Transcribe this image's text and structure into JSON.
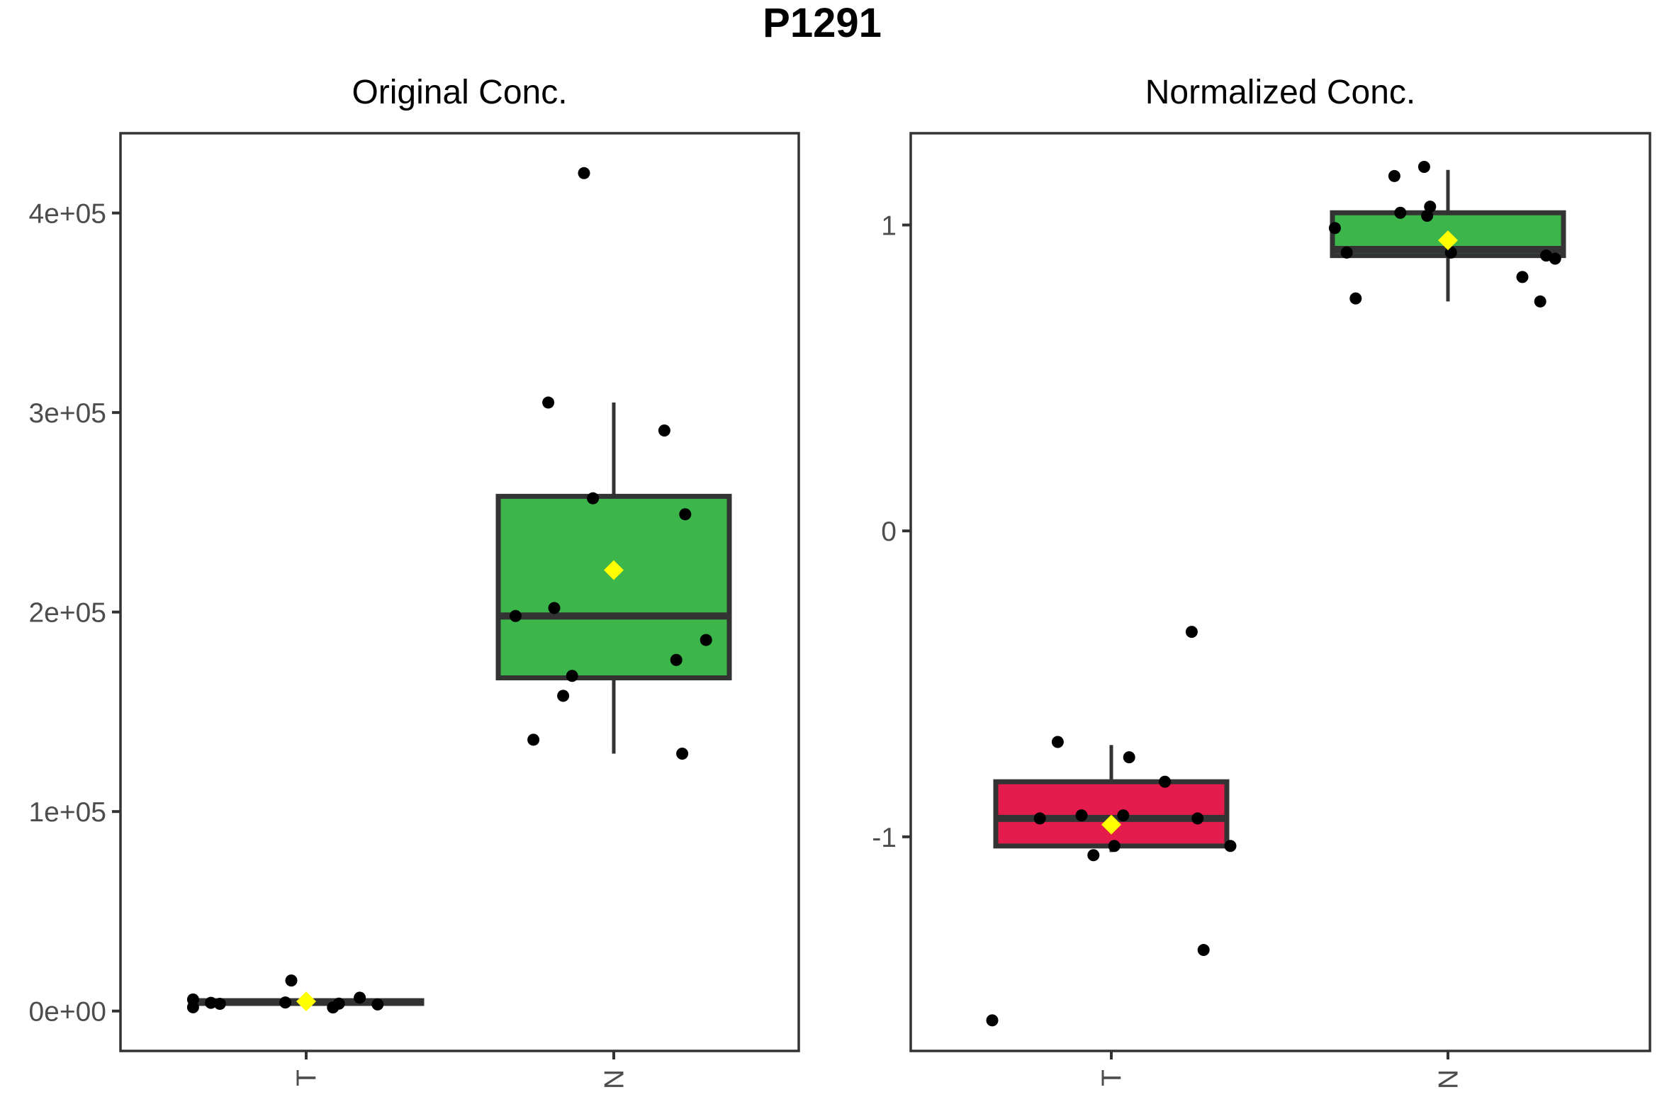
{
  "chart_data": {
    "type": "boxplot",
    "title": "P1291",
    "panels": [
      {
        "title": "Original Conc.",
        "ylim": [
          -20000,
          440000
        ],
        "yticks": [
          0,
          100000,
          200000,
          300000,
          400000
        ],
        "ytick_labels": [
          "0e+00",
          "1e+05",
          "2e+05",
          "3e+05",
          "4e+05"
        ],
        "categories": [
          "T",
          "N"
        ],
        "groups": [
          {
            "label": "T",
            "color": "",
            "stats": {
              "lower_whisker": 3000,
              "q1": 3800,
              "median": 4500,
              "q3": 5200,
              "upper_whisker": 6500,
              "mean": 4800
            },
            "points": [
              {
                "jx": -0.38,
                "y": 1900
              },
              {
                "jx": -0.38,
                "y": 5800
              },
              {
                "jx": -0.32,
                "y": 4100
              },
              {
                "jx": -0.29,
                "y": 3600
              },
              {
                "jx": -0.07,
                "y": 4300
              },
              {
                "jx": -0.05,
                "y": 15300
              },
              {
                "jx": 0.09,
                "y": 1800
              },
              {
                "jx": 0.11,
                "y": 3700
              },
              {
                "jx": 0.18,
                "y": 6700
              },
              {
                "jx": 0.24,
                "y": 3300
              }
            ]
          },
          {
            "label": "N",
            "color": "#3cb54a",
            "stats": {
              "lower_whisker": 129000,
              "q1": 167000,
              "median": 198000,
              "q3": 258000,
              "upper_whisker": 305000,
              "mean": 221000
            },
            "points": [
              {
                "jx": -0.33,
                "y": 198000
              },
              {
                "jx": -0.27,
                "y": 136000
              },
              {
                "jx": -0.22,
                "y": 305000
              },
              {
                "jx": -0.2,
                "y": 202000
              },
              {
                "jx": -0.17,
                "y": 158000
              },
              {
                "jx": -0.14,
                "y": 168000
              },
              {
                "jx": -0.1,
                "y": 420000
              },
              {
                "jx": -0.07,
                "y": 257000
              },
              {
                "jx": 0.17,
                "y": 291000
              },
              {
                "jx": 0.21,
                "y": 176000
              },
              {
                "jx": 0.23,
                "y": 129000
              },
              {
                "jx": 0.24,
                "y": 249000
              },
              {
                "jx": 0.31,
                "y": 186000
              }
            ]
          }
        ]
      },
      {
        "title": "Normalized Conc.",
        "ylim": [
          -1.7,
          1.3
        ],
        "yticks": [
          -1,
          0,
          1
        ],
        "ytick_labels": [
          "-1",
          "0",
          "1"
        ],
        "categories": [
          "T",
          "N"
        ],
        "groups": [
          {
            "label": "T",
            "color": "#e31c4d",
            "stats": {
              "lower_whisker": -1.05,
              "q1": -1.03,
              "median": -0.94,
              "q3": -0.82,
              "upper_whisker": -0.7,
              "mean": -0.96
            },
            "points": [
              {
                "jx": -0.4,
                "y": -1.6
              },
              {
                "jx": -0.24,
                "y": -0.94
              },
              {
                "jx": -0.18,
                "y": -0.69
              },
              {
                "jx": -0.1,
                "y": -0.93
              },
              {
                "jx": -0.06,
                "y": -1.06
              },
              {
                "jx": 0.01,
                "y": -1.03
              },
              {
                "jx": 0.04,
                "y": -0.93
              },
              {
                "jx": 0.06,
                "y": -0.74
              },
              {
                "jx": 0.18,
                "y": -0.82
              },
              {
                "jx": 0.27,
                "y": -0.33
              },
              {
                "jx": 0.29,
                "y": -0.94
              },
              {
                "jx": 0.31,
                "y": -1.37
              },
              {
                "jx": 0.4,
                "y": -1.03
              }
            ]
          },
          {
            "label": "N",
            "color": "#3cb54a",
            "stats": {
              "lower_whisker": 0.75,
              "q1": 0.9,
              "median": 0.92,
              "q3": 1.04,
              "upper_whisker": 1.18,
              "mean": 0.95
            },
            "points": [
              {
                "jx": -0.38,
                "y": 0.99
              },
              {
                "jx": -0.34,
                "y": 0.91
              },
              {
                "jx": -0.31,
                "y": 0.76
              },
              {
                "jx": -0.18,
                "y": 1.16
              },
              {
                "jx": -0.16,
                "y": 1.04
              },
              {
                "jx": -0.08,
                "y": 1.19
              },
              {
                "jx": -0.07,
                "y": 1.03
              },
              {
                "jx": -0.06,
                "y": 1.06
              },
              {
                "jx": 0.01,
                "y": 0.91
              },
              {
                "jx": 0.25,
                "y": 0.83
              },
              {
                "jx": 0.31,
                "y": 0.75
              },
              {
                "jx": 0.33,
                "y": 0.9
              },
              {
                "jx": 0.36,
                "y": 0.89
              }
            ]
          }
        ]
      }
    ]
  }
}
